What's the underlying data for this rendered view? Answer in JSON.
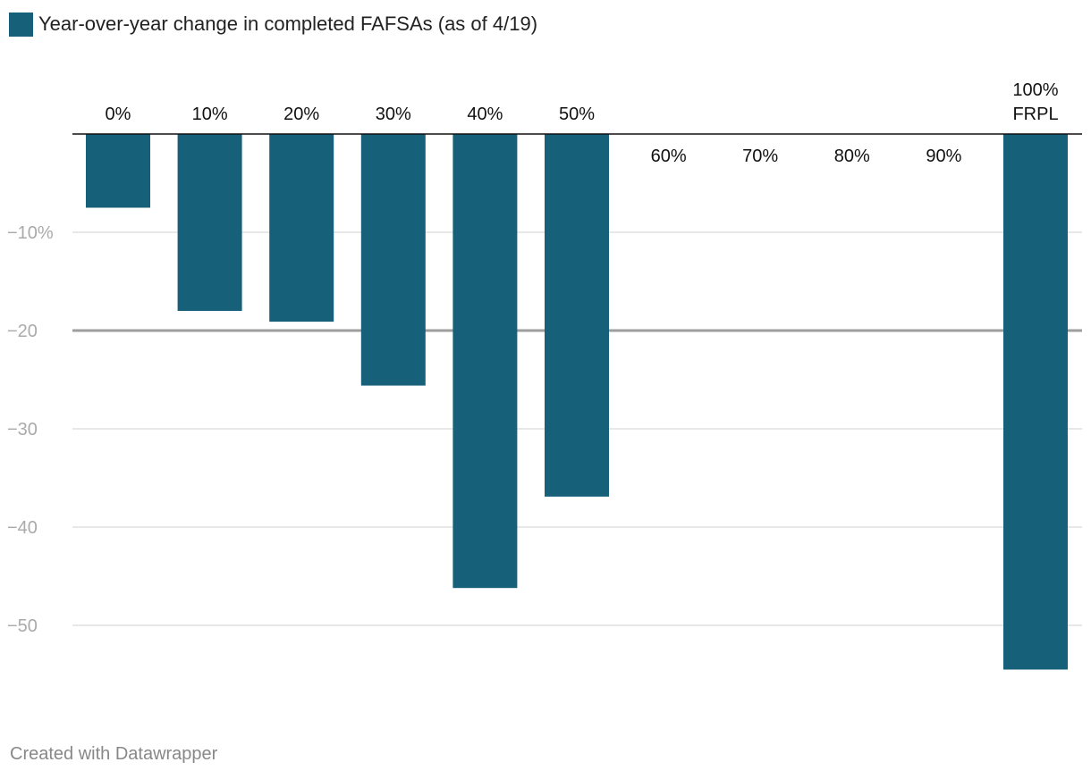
{
  "legend": {
    "label": "Year-over-year change in completed FAFSAs (as of 4/19)",
    "color": "#17607a"
  },
  "footer": {
    "credit": "Created with Datawrapper"
  },
  "colors": {
    "bar": "#17607a",
    "grid": "#e0e0e0",
    "reference_line": "#9e9e9e",
    "baseline": "#111111",
    "tick_text": "#aaaaaa"
  },
  "chart_data": {
    "type": "bar",
    "categories": [
      "0%",
      "10%",
      "20%",
      "30%",
      "40%",
      "50%",
      "60%",
      "70%",
      "80%",
      "90%",
      "100% FRPL"
    ],
    "series": [
      {
        "values": [
          -7.5,
          -18.0,
          -19.1,
          -25.6,
          -46.2,
          -36.9,
          null,
          null,
          null,
          null,
          -54.5
        ]
      }
    ],
    "ylim": [
      -60,
      0
    ],
    "yticks": [
      -10,
      -20,
      -30,
      -40,
      -50
    ],
    "ytick_labels": [
      "−10%",
      "−20",
      "−30",
      "−40",
      "−50"
    ],
    "reference_line": -20,
    "grid": true,
    "xlabel": "",
    "ylabel": ""
  }
}
